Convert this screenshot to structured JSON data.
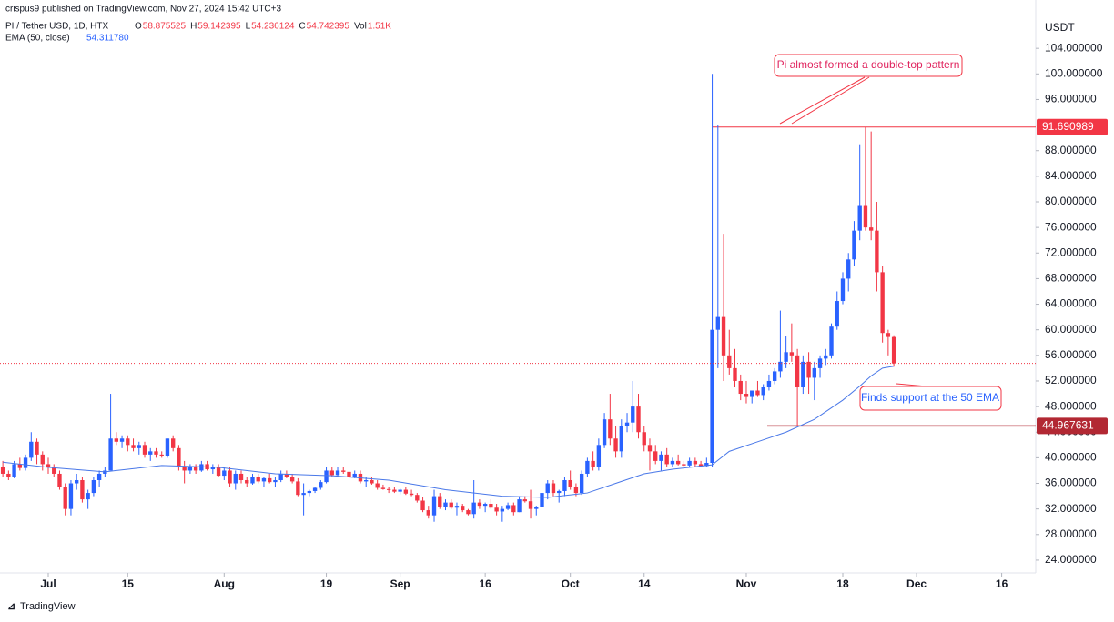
{
  "header": {
    "publisher": "crispus9 published on TradingView.com, Nov 27, 2024 15:42 UTC+3",
    "symbol": "PI / Tether USD, 1D, HTX",
    "quote": [
      {
        "key": "O",
        "value": "58.875525"
      },
      {
        "key": "H",
        "value": "59.142395"
      },
      {
        "key": "L",
        "value": "54.236124"
      },
      {
        "key": "C",
        "value": "54.742395"
      },
      {
        "key": "Vol",
        "value": "1.51K"
      }
    ],
    "ema_legend": {
      "name": "EMA (50, close)",
      "value": "54.311780"
    }
  },
  "logo": "TradingView",
  "chart_data": {
    "type": "candlestick",
    "y_axis_label": "USDT",
    "grid": false,
    "up_color": "#2962ff",
    "down_color": "#f23645",
    "xlim": [
      -8.5,
      174
    ],
    "ylim": [
      22,
      109
    ],
    "xticks": [
      {
        "value": 0,
        "label": "Jul"
      },
      {
        "value": 14,
        "label": "15"
      },
      {
        "value": 31,
        "label": "Aug"
      },
      {
        "value": 49,
        "label": "19"
      },
      {
        "value": 62,
        "label": "Sep"
      },
      {
        "value": 77,
        "label": "16"
      },
      {
        "value": 92,
        "label": "Oct"
      },
      {
        "value": 105,
        "label": "14"
      },
      {
        "value": 123,
        "label": "Nov"
      },
      {
        "value": 140,
        "label": "18"
      },
      {
        "value": 153,
        "label": "Dec"
      },
      {
        "value": 168,
        "label": "16"
      }
    ],
    "yticks": [
      {
        "value": 24,
        "label": "24.000000"
      },
      {
        "value": 28,
        "label": "28.000000"
      },
      {
        "value": 32,
        "label": "32.000000"
      },
      {
        "value": 36,
        "label": "36.000000"
      },
      {
        "value": 40,
        "label": "40.000000"
      },
      {
        "value": 44,
        "label": "44.000000"
      },
      {
        "value": 48,
        "label": "48.000000"
      },
      {
        "value": 52,
        "label": "52.000000"
      },
      {
        "value": 56,
        "label": "56.000000"
      },
      {
        "value": 60,
        "label": "60.000000"
      },
      {
        "value": 64,
        "label": "64.000000"
      },
      {
        "value": 68,
        "label": "68.000000"
      },
      {
        "value": 72,
        "label": "72.000000"
      },
      {
        "value": 76,
        "label": "76.000000"
      },
      {
        "value": 80,
        "label": "80.000000"
      },
      {
        "value": 84,
        "label": "84.000000"
      },
      {
        "value": 88,
        "label": "88.000000"
      },
      {
        "value": 92,
        "label": "92.000000"
      },
      {
        "value": 96,
        "label": "96.000000"
      },
      {
        "value": 100,
        "label": "100.000000"
      },
      {
        "value": 104,
        "label": "104.000000"
      }
    ],
    "x": [
      -8,
      -7,
      -6,
      -5,
      -4,
      -3,
      -2,
      -1,
      0,
      1,
      2,
      3,
      4,
      5,
      6,
      7,
      8,
      9,
      10,
      11,
      12,
      13,
      14,
      15,
      16,
      17,
      18,
      19,
      20,
      21,
      22,
      23,
      24,
      25,
      26,
      27,
      28,
      29,
      30,
      31,
      32,
      33,
      34,
      35,
      36,
      37,
      38,
      39,
      40,
      41,
      42,
      43,
      44,
      45,
      46,
      47,
      48,
      49,
      50,
      51,
      52,
      53,
      54,
      55,
      56,
      57,
      58,
      59,
      60,
      61,
      62,
      63,
      64,
      65,
      66,
      67,
      68,
      69,
      70,
      71,
      72,
      73,
      74,
      75,
      76,
      77,
      78,
      79,
      80,
      81,
      82,
      83,
      84,
      85,
      86,
      87,
      88,
      89,
      90,
      91,
      92,
      93,
      94,
      95,
      96,
      97,
      98,
      99,
      100,
      101,
      102,
      103,
      104,
      105,
      106,
      107,
      108,
      109,
      110,
      111,
      112,
      113,
      114,
      115,
      116,
      117,
      118,
      119,
      120,
      121,
      122,
      123,
      124,
      125,
      126,
      127,
      128,
      129,
      130,
      131,
      132,
      133,
      134,
      135,
      136,
      137,
      138,
      139,
      140,
      141,
      142,
      143,
      144,
      145,
      146,
      147,
      148,
      149
    ],
    "ohlc": [
      [
        38.5,
        39.5,
        37,
        37.5
      ],
      [
        37.5,
        38,
        36.5,
        37
      ],
      [
        37,
        39.5,
        36.8,
        39
      ],
      [
        39,
        40,
        38,
        38.4
      ],
      [
        38.4,
        40.5,
        38,
        40
      ],
      [
        40,
        44,
        39.5,
        42.5
      ],
      [
        42.5,
        43,
        39,
        40.5
      ],
      [
        40.5,
        41,
        38,
        39
      ],
      [
        39,
        40,
        37.5,
        38.5
      ],
      [
        38.5,
        39,
        37,
        37.5
      ],
      [
        37.5,
        38,
        35,
        35.5
      ],
      [
        35.5,
        36,
        31,
        32
      ],
      [
        32,
        36.5,
        31,
        36
      ],
      [
        36,
        37.5,
        35,
        36.5
      ],
      [
        36.5,
        37,
        33,
        33.5
      ],
      [
        33.5,
        35,
        32,
        34.5
      ],
      [
        34.5,
        37,
        34,
        36.5
      ],
      [
        36.5,
        38,
        35.5,
        37.5
      ],
      [
        37.5,
        38.5,
        37,
        38
      ],
      [
        38,
        50,
        38,
        43
      ],
      [
        43,
        44,
        42,
        42.5
      ],
      [
        42.5,
        43.5,
        41.5,
        43
      ],
      [
        43,
        43.5,
        41,
        42
      ],
      [
        42,
        43,
        41,
        41.5
      ],
      [
        41.5,
        42.5,
        40.5,
        42
      ],
      [
        42,
        42.5,
        40,
        40.5
      ],
      [
        40.5,
        41.5,
        39.5,
        41
      ],
      [
        41,
        41.5,
        40,
        40.5
      ],
      [
        40.5,
        41,
        40,
        40.2
      ],
      [
        40.2,
        43,
        40,
        43
      ],
      [
        43,
        43.5,
        41,
        41.5
      ],
      [
        41.5,
        42,
        38,
        38.5
      ],
      [
        38.5,
        39.5,
        36,
        38
      ],
      [
        38,
        39,
        37.5,
        38.5
      ],
      [
        38.5,
        39,
        37.5,
        38
      ],
      [
        38,
        39.5,
        37.8,
        39
      ],
      [
        39,
        39.5,
        38,
        38.2
      ],
      [
        38.2,
        39,
        37.5,
        38.5
      ],
      [
        38.5,
        39,
        37,
        37.2
      ],
      [
        37.2,
        38.5,
        36.5,
        38
      ],
      [
        38,
        38.5,
        35.5,
        36
      ],
      [
        36,
        38,
        35,
        37.5
      ],
      [
        37.5,
        38,
        36,
        36.5
      ],
      [
        36.5,
        37,
        35.5,
        36
      ],
      [
        36,
        37.5,
        35.8,
        37
      ],
      [
        37,
        37.5,
        36,
        36.3
      ],
      [
        36.3,
        37,
        35.5,
        36.8
      ],
      [
        36.8,
        37.5,
        36,
        36.2
      ],
      [
        36.2,
        37,
        35.5,
        36.5
      ],
      [
        36.5,
        38,
        36.2,
        37.5
      ],
      [
        37.5,
        38,
        36.8,
        37
      ],
      [
        37,
        37.5,
        36,
        36.3
      ],
      [
        36.3,
        36.8,
        34,
        34.2
      ],
      [
        34.2,
        36,
        31,
        34.5
      ],
      [
        34.5,
        35,
        34,
        34.8
      ],
      [
        34.8,
        35.5,
        34.5,
        35.3
      ],
      [
        35.3,
        36.5,
        35,
        36.2
      ],
      [
        36.2,
        38.5,
        36,
        38
      ],
      [
        38,
        38.5,
        37,
        37.3
      ],
      [
        37.3,
        38.5,
        37,
        38
      ],
      [
        38,
        38.5,
        37.5,
        37.8
      ],
      [
        37.8,
        38,
        36.5,
        37
      ],
      [
        37,
        38,
        36.8,
        37.5
      ],
      [
        37.5,
        38,
        36,
        36.3
      ],
      [
        36.3,
        37,
        35.5,
        36.5
      ],
      [
        36.5,
        37,
        35.8,
        36
      ],
      [
        36,
        36.5,
        35,
        35.3
      ],
      [
        35.3,
        35.8,
        35,
        35.1
      ],
      [
        35.1,
        35.5,
        34.5,
        35
      ],
      [
        35,
        35.5,
        34.5,
        34.7
      ],
      [
        34.7,
        35.2,
        34.3,
        35
      ],
      [
        35,
        35.5,
        34.2,
        34.4
      ],
      [
        34.4,
        35,
        34,
        34.2
      ],
      [
        34.2,
        34.5,
        33,
        33.3
      ],
      [
        33.3,
        33.8,
        31.5,
        31.8
      ],
      [
        31.8,
        32.5,
        30.5,
        31
      ],
      [
        31,
        35,
        30,
        34
      ],
      [
        34,
        34.5,
        32,
        32.3
      ],
      [
        32.3,
        33.5,
        31.8,
        33
      ],
      [
        33,
        33.5,
        32,
        32.2
      ],
      [
        32.2,
        33,
        31,
        32.5
      ],
      [
        32.5,
        32.8,
        31.5,
        31.8
      ],
      [
        31.8,
        32,
        31,
        31.2
      ],
      [
        31.2,
        36.5,
        30.5,
        33
      ],
      [
        33,
        33.5,
        32,
        32.5
      ],
      [
        32.5,
        33,
        31.5,
        32.8
      ],
      [
        32.8,
        33.5,
        32,
        32.2
      ],
      [
        32.2,
        32.8,
        31,
        31.6
      ],
      [
        31.6,
        32.5,
        30,
        32
      ],
      [
        32,
        33,
        31.8,
        32.6
      ],
      [
        32.6,
        33,
        31,
        31.5
      ],
      [
        31.5,
        34,
        31.5,
        33.5
      ],
      [
        33.5,
        34,
        33,
        33.2
      ],
      [
        33.2,
        35,
        30.5,
        32
      ],
      [
        32,
        32.5,
        31,
        32.3
      ],
      [
        32.3,
        35,
        31,
        34.5
      ],
      [
        34.5,
        36.5,
        33.5,
        36
      ],
      [
        36,
        36.5,
        34,
        34.5
      ],
      [
        34.5,
        35,
        33,
        34.8
      ],
      [
        34.8,
        37,
        34,
        36.5
      ],
      [
        36.5,
        38,
        35,
        35.5
      ],
      [
        35.5,
        36,
        34,
        34.5
      ],
      [
        34.5,
        38,
        34.2,
        37.5
      ],
      [
        37.5,
        40,
        37,
        39.5
      ],
      [
        39.5,
        41,
        38,
        38.5
      ],
      [
        38.5,
        43,
        38,
        42
      ],
      [
        42,
        47,
        41.5,
        46
      ],
      [
        46,
        50,
        42,
        43
      ],
      [
        43,
        45,
        40,
        41
      ],
      [
        41,
        46,
        40,
        45
      ],
      [
        45,
        47,
        44,
        45.5
      ],
      [
        45.5,
        52,
        44,
        48
      ],
      [
        48,
        50,
        43,
        44
      ],
      [
        44,
        45,
        41,
        42
      ],
      [
        42,
        43,
        38,
        41
      ],
      [
        41,
        42,
        39,
        39.5
      ],
      [
        39.5,
        41,
        38,
        40.5
      ],
      [
        40.5,
        41.5,
        38.5,
        39
      ],
      [
        39,
        40,
        38.5,
        39.5
      ],
      [
        39.5,
        40.5,
        38.8,
        39
      ],
      [
        39,
        39.5,
        38.5,
        38.8
      ],
      [
        38.8,
        40,
        38.5,
        39.5
      ],
      [
        39.5,
        40,
        38.5,
        39
      ],
      [
        39,
        39.5,
        38.5,
        38.7
      ],
      [
        38.7,
        40,
        38.5,
        39.2
      ],
      [
        39.2,
        100,
        38.5,
        60
      ],
      [
        60,
        92,
        54,
        62
      ],
      [
        62,
        75,
        52,
        56
      ],
      [
        56,
        60,
        53,
        54
      ],
      [
        54,
        57,
        51,
        52
      ],
      [
        52,
        53,
        49,
        50
      ],
      [
        50,
        52,
        48.5,
        49.5
      ],
      [
        49.5,
        50.5,
        48.5,
        50.5
      ],
      [
        50.5,
        52,
        49.5,
        49.8
      ],
      [
        49.8,
        51.5,
        49,
        51
      ],
      [
        51,
        53,
        50.5,
        52
      ],
      [
        52,
        54,
        51.5,
        53.5
      ],
      [
        53.5,
        63,
        52.5,
        55
      ],
      [
        55,
        59,
        54,
        56.5
      ],
      [
        56.5,
        61,
        55,
        56
      ],
      [
        56,
        57,
        45,
        51
      ],
      [
        51,
        56,
        50,
        55
      ],
      [
        55,
        56.5,
        50,
        52.5
      ],
      [
        52.5,
        55,
        49,
        54
      ],
      [
        54,
        56,
        52.5,
        55.5
      ],
      [
        55.5,
        57,
        54.5,
        56
      ],
      [
        56,
        61,
        55.5,
        60.5
      ],
      [
        60.5,
        66,
        60,
        64.5
      ],
      [
        64.5,
        69,
        64,
        68
      ],
      [
        68,
        72,
        66,
        71
      ],
      [
        71,
        77,
        70,
        75.5
      ],
      [
        75.5,
        89,
        74,
        79.5
      ],
      [
        79.5,
        91.690989,
        75.5,
        76
      ],
      [
        76,
        91,
        74,
        75.5
      ],
      [
        75.5,
        80,
        66,
        69
      ],
      [
        69,
        70,
        58,
        59.5
      ],
      [
        59.5,
        60,
        56,
        58.875525
      ],
      [
        58.875525,
        59.142395,
        54.236124,
        54.742395
      ]
    ],
    "ema": {
      "name": "EMA (50, close)",
      "color": "#4a78e8",
      "x": [
        -8,
        0,
        10,
        20,
        30,
        40,
        50,
        60,
        70,
        80,
        88,
        95,
        100,
        105,
        110,
        117,
        120,
        125,
        130,
        135,
        140,
        143,
        145,
        147,
        149
      ],
      "values": [
        39.3,
        38.5,
        37.8,
        38.8,
        38.5,
        37.5,
        37.2,
        36.5,
        35,
        34,
        33.8,
        34.5,
        36,
        37.5,
        38.2,
        38.9,
        41,
        42.5,
        44,
        46,
        49,
        51.2,
        52.8,
        54,
        54.31178
      ]
    },
    "levels": [
      {
        "value": 91.690989,
        "color": "#f23645"
      },
      {
        "value": 44.967631,
        "color": "#b22833"
      }
    ],
    "annotations": [
      "Pi almost formed a double-top pattern",
      "Finds support at the 50 EMA"
    ]
  }
}
